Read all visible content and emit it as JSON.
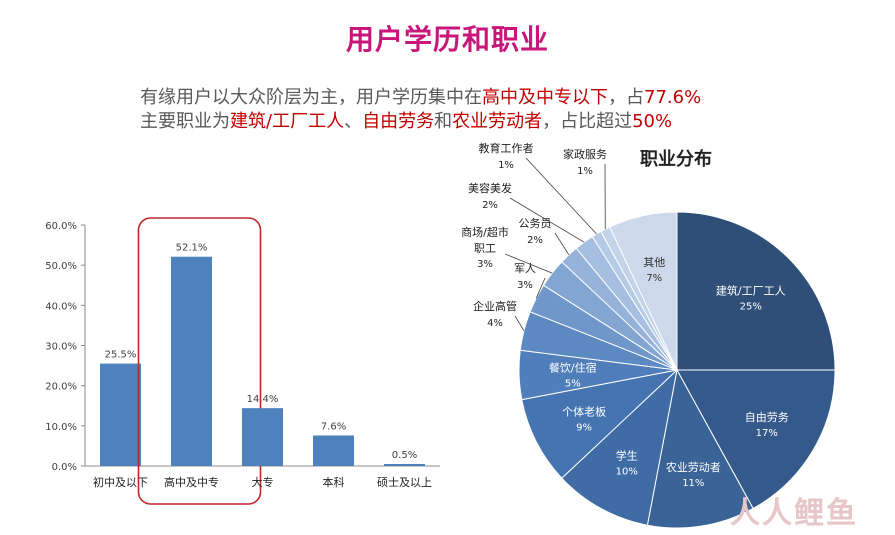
{
  "page": {
    "title": "用户学历和职业",
    "subtitle_line1": {
      "prefix": "有缘用户以大众阶层为主，用户学历集中在",
      "highlight1": "高中及中专以下",
      "middle": "，占",
      "highlight2": "77.6%"
    },
    "subtitle_line2": {
      "prefix": "主要职业为",
      "highlight1": "建筑/工厂工人",
      "sep1": "、",
      "highlight2": "自由劳务",
      "sep2": "和",
      "highlight3": "农业劳动者",
      "middle": "，占比超过",
      "highlight4": "50%"
    },
    "watermark": "人人鲤鱼"
  },
  "colors": {
    "title": "#c8167a",
    "highlight": "#c00000",
    "bar": "#4f81bd",
    "highlight_box": "#c0272d"
  },
  "chart_data": [
    {
      "type": "bar",
      "title": "",
      "categories": [
        "初中及以下",
        "高中及中专",
        "大专",
        "本科",
        "硕士及以上"
      ],
      "values": [
        25.5,
        52.1,
        14.4,
        7.6,
        0.5
      ],
      "value_labels": [
        "25.5%",
        "52.1%",
        "14.4%",
        "7.6%",
        "0.5%"
      ],
      "ylim": [
        0,
        60
      ],
      "yticks": [
        "0.0%",
        "10.0%",
        "20.0%",
        "30.0%",
        "40.0%",
        "50.0%",
        "60.0%"
      ],
      "highlighted_category": "高中及中专",
      "grid": false
    },
    {
      "type": "pie",
      "title": "职业分布",
      "slices": [
        {
          "label": "建筑/工厂工人",
          "value": 25,
          "pct": "25%",
          "color": "#2f4e78",
          "label_inside": true
        },
        {
          "label": "自由劳务",
          "value": 17,
          "pct": "17%",
          "color": "#35598a",
          "label_inside": true
        },
        {
          "label": "农业劳动者",
          "value": 11,
          "pct": "11%",
          "color": "#3a6397",
          "label_inside": true
        },
        {
          "label": "学生",
          "value": 10,
          "pct": "10%",
          "color": "#3f6ca5",
          "label_inside": true
        },
        {
          "label": "个体老板",
          "value": 9,
          "pct": "9%",
          "color": "#4574b0",
          "label_inside": true
        },
        {
          "label": "餐饮/住宿",
          "value": 5,
          "pct": "5%",
          "color": "#4f7ebb",
          "label_inside": true
        },
        {
          "label": "企业高管",
          "value": 4,
          "pct": "4%",
          "color": "#5d89c2",
          "label_inside": false
        },
        {
          "label": "军人",
          "value": 3,
          "pct": "3%",
          "color": "#6f97ca",
          "label_inside": false
        },
        {
          "label": "商场/超市职工",
          "value": 3,
          "pct": "3%",
          "color": "#82a5d2",
          "label_inside": false
        },
        {
          "label": "公务员",
          "value": 2,
          "pct": "2%",
          "color": "#95b3d9",
          "label_inside": false
        },
        {
          "label": "美容美发",
          "value": 2,
          "pct": "2%",
          "color": "#a6bfe0",
          "label_inside": false
        },
        {
          "label": "教育工作者",
          "value": 1,
          "pct": "1%",
          "color": "#b5cae5",
          "label_inside": false
        },
        {
          "label": "家政服务",
          "value": 1,
          "pct": "1%",
          "color": "#c2d3ea",
          "label_inside": false
        },
        {
          "label": "其他",
          "value": 7,
          "pct": "7%",
          "color": "#cdd8eb",
          "label_inside": true
        }
      ]
    }
  ]
}
